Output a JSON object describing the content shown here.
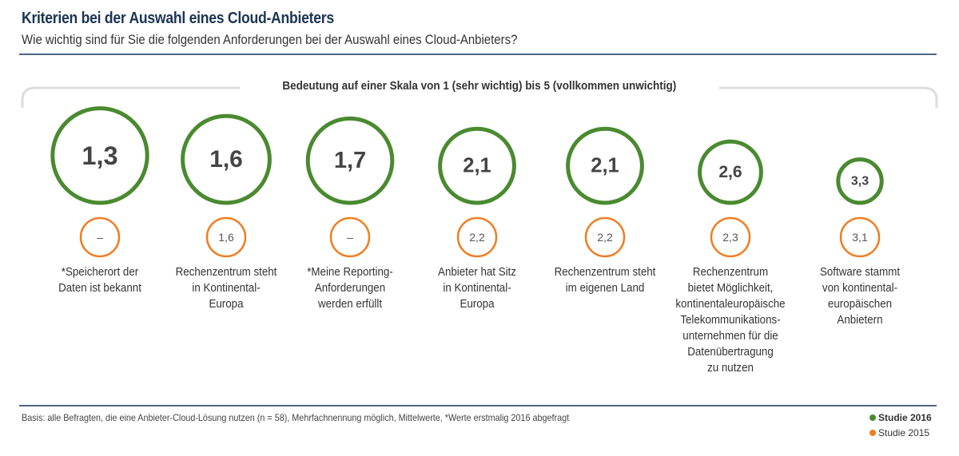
{
  "header": {
    "title": "Kriterien bei der Auswahl eines Cloud-Anbieters",
    "subtitle": "Wie wichtig sind für Sie die folgenden Anforderungen bei der Auswahl eines Cloud-Anbieters?"
  },
  "chart_data": {
    "type": "bubble",
    "title": "Kriterien bei der Auswahl eines Cloud-Anbieters",
    "scale_label": "Bedeutung auf einer Skala von 1 (sehr wichtig) bis 5 (vollkommen unwichtig)",
    "categories": [
      "*Speicherort der\nDaten ist bekannt",
      "Rechenzentrum steht\nin Kontinental-\nEuropa",
      "*Meine Reporting-\nAnforderungen\nwerden erfüllt",
      "Anbieter hat Sitz\nin Kontinental-\nEuropa",
      "Rechenzentrum steht\nim eigenen Land",
      "Rechenzentrum\nbietet Möglichkeit,\nkontinentaleuropäische\nTelekommunikations-\nunternehmen für die\nDatenübertragung\nzu nutzen",
      "Software stammt\nvon kontinental-\neuropäischen\nAnbietern"
    ],
    "series": [
      {
        "name": "Studie 2016",
        "color": "#4a8a30",
        "values": [
          1.3,
          1.6,
          1.7,
          2.1,
          2.1,
          2.6,
          3.3
        ],
        "labels": [
          "1,3",
          "1,6",
          "1,7",
          "2,1",
          "2,1",
          "2,6",
          "3,3"
        ]
      },
      {
        "name": "Studie 2015",
        "color": "#f07d22",
        "values": [
          null,
          1.6,
          null,
          2.2,
          2.2,
          2.3,
          3.1
        ],
        "labels": [
          "–",
          "1,6",
          "–",
          "2,2",
          "2,2",
          "2,3",
          "3,1"
        ]
      }
    ],
    "legend_position": "bottom-right"
  },
  "footer": {
    "note": "Basis: alle Befragten, die eine Anbieter-Cloud-Lösung nutzen (n = 58), Mehrfachnennung möglich, Mittelwerte, *Werte erstmalig 2016 abgefragt"
  }
}
